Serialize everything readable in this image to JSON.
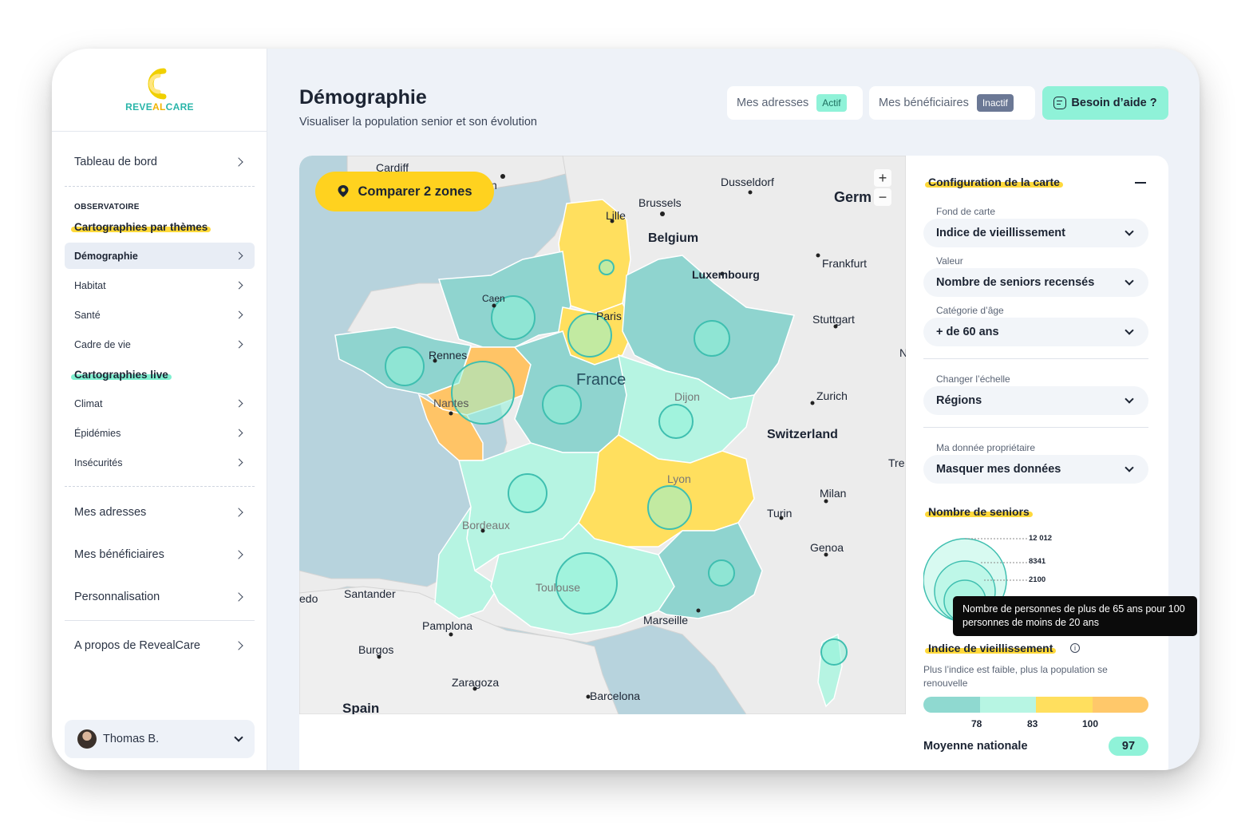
{
  "app": {
    "brand_part1": "REVE",
    "brand_part2": "AL",
    "brand_part3": "CARE"
  },
  "sidebar": {
    "dashboard": "Tableau de bord",
    "observatory_label": "OBSERVATOIRE",
    "themes_title": "Cartographies par thèmes",
    "theme_items": [
      "Démographie",
      "Habitat",
      "Santé",
      "Cadre de vie"
    ],
    "live_title": "Cartographies live",
    "live_items": [
      "Climat",
      "Épidémies",
      "Insécurités"
    ],
    "bottom_items": [
      "Mes adresses",
      "Mes bénéficiaires",
      "Personnalisation"
    ],
    "about": "A propos de RevealCare",
    "user_name": "Thomas B.",
    "active_item": "Démographie"
  },
  "header": {
    "title": "Démographie",
    "subtitle": "Visualiser la population senior et son évolution",
    "addresses_label": "Mes adresses",
    "addresses_status": "Actif",
    "beneficiaries_label": "Mes bénéficiaires",
    "beneficiaries_status": "Inactif",
    "help_label": "Besoin d’aide ?"
  },
  "map": {
    "compare_button": "Comparer 2 zones",
    "zoom_in": "+",
    "zoom_out": "−",
    "labels": {
      "cardiff": "Cardiff",
      "dusseldorf": "Dusseldorf",
      "germany": "Germ",
      "brussels": "Brussels",
      "lille": "Lille",
      "belgium": "Belgium",
      "frankfurt": "Frankfurt",
      "luxembourg": "Luxembourg",
      "caen": "Caen",
      "paris": "Paris",
      "stuttgart": "Stuttgart",
      "rennes": "Rennes",
      "france": "France",
      "nantes": "Nantes",
      "dijon": "Dijon",
      "zurich": "Zurich",
      "switzerland": "Switzerland",
      "lyon": "Lyon",
      "milan": "Milan",
      "turin": "Turin",
      "bordeaux": "Bordeaux",
      "genoa": "Genoa",
      "toulouse": "Toulouse",
      "santander": "Santander",
      "marseille": "Marseille",
      "pamplona": "Pamplona",
      "burgos": "Burgos",
      "zaragoza": "Zaragoza",
      "barcelona": "Barcelona",
      "spain": "Spain",
      "edo": "edo",
      "n_cut": "N",
      "tre": "Tre",
      "ghost_n": "n"
    }
  },
  "config": {
    "title": "Configuration de la carte",
    "basemap_label": "Fond de carte",
    "basemap_value": "Indice de vieillissement",
    "value_label": "Valeur",
    "value_value": "Nombre de seniors recensés",
    "age_label": "Catégorie d’âge",
    "age_value": "+ de 60 ans",
    "scale_label": "Changer l’échelle",
    "scale_value": "Régions",
    "owner_label": "Ma donnée propriétaire",
    "owner_value": "Masquer mes données",
    "seniors_title": "Nombre de seniors",
    "bubble_values": [
      "12 012",
      "8341",
      "2100"
    ],
    "index_title": "Indice de vieillissement",
    "index_info_icon": "i",
    "index_note": "Plus l’indice est faible, plus la population se renouvelle",
    "scale_ticks": [
      "78",
      "83",
      "100"
    ],
    "scale_colors": [
      "#8fd9d0",
      "#b7f5e3",
      "#ffdf5e",
      "#ffc86a"
    ],
    "avg_label": "Moyenne nationale",
    "avg_value": "97",
    "tooltip": "Nombre de personnes de plus de 65 ans pour 100 personnes de moins de 20 ans"
  },
  "colors": {
    "accent_mint": "#8ff2d8",
    "accent_yellow": "#ffd21f",
    "region_teal": "#8fd4cf",
    "region_mint": "#b6f4e2",
    "region_yellow": "#ffdf5e",
    "region_orange": "#ffc466"
  }
}
